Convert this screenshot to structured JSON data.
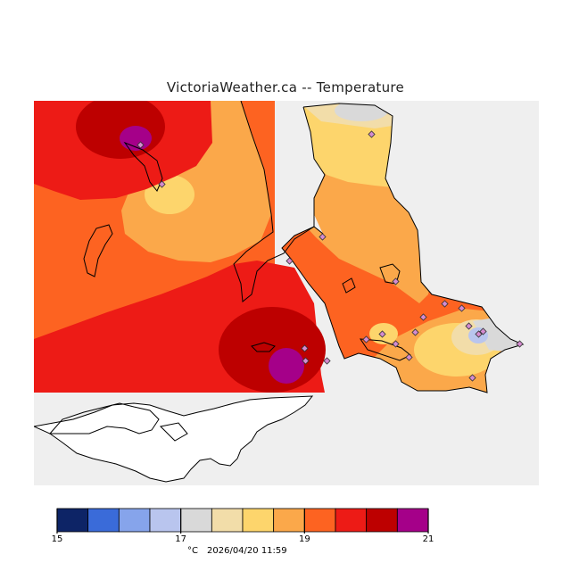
{
  "title": "VictoriaWeather.ca -- Temperature",
  "legend": {
    "unit": "°C",
    "timestamp": "2026/04/20 11:59",
    "bins": [
      {
        "from": 15,
        "to": 15.5,
        "color": "#0d2466"
      },
      {
        "from": 15.5,
        "to": 16,
        "color": "#3a6bd9"
      },
      {
        "from": 16,
        "to": 16.5,
        "color": "#86a4eb"
      },
      {
        "from": 16.5,
        "to": 17,
        "color": "#b9c5ee"
      },
      {
        "from": 17,
        "to": 17.5,
        "color": "#d9d9d9"
      },
      {
        "from": 17.5,
        "to": 18,
        "color": "#f2dda9"
      },
      {
        "from": 18,
        "to": 18.5,
        "color": "#fdd56c"
      },
      {
        "from": 18.5,
        "to": 19,
        "color": "#fba84a"
      },
      {
        "from": 19,
        "to": 19.5,
        "color": "#fd6321"
      },
      {
        "from": 19.5,
        "to": 20,
        "color": "#ed1b16"
      },
      {
        "from": 20,
        "to": 20.5,
        "color": "#bd0000"
      },
      {
        "from": 20.5,
        "to": 21,
        "color": "#a50089"
      }
    ],
    "tick_labels": [
      "15",
      "17",
      "19",
      "21"
    ]
  }
}
